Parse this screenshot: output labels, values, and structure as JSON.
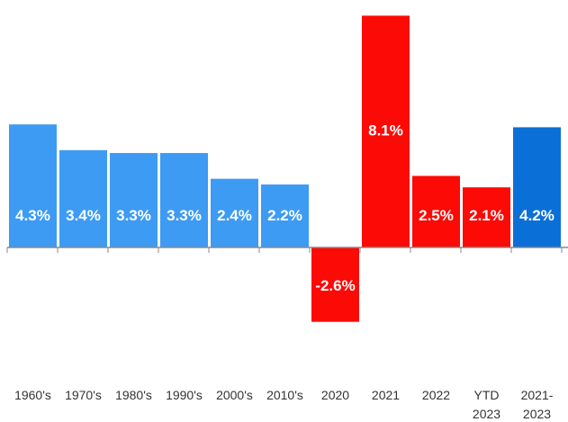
{
  "chart_data": {
    "type": "bar",
    "title": "",
    "xlabel": "",
    "ylabel": "",
    "ylim": [
      -3.1,
      8.8
    ],
    "grid": false,
    "legend": "none",
    "categories": [
      [
        "1960's"
      ],
      [
        "1970's"
      ],
      [
        "1980's"
      ],
      [
        "1990's"
      ],
      [
        "2000's"
      ],
      [
        "2010's"
      ],
      [
        "2020"
      ],
      [
        "2021"
      ],
      [
        "2022"
      ],
      [
        "YTD",
        "2023"
      ],
      [
        "2021-",
        "2023"
      ]
    ],
    "values": [
      4.3,
      3.4,
      3.3,
      3.3,
      2.4,
      2.2,
      -2.6,
      8.1,
      2.5,
      2.1,
      4.2
    ],
    "data_labels": [
      "4.3%",
      "3.4%",
      "3.3%",
      "3.3%",
      "2.4%",
      "2.2%",
      "-2.6%",
      "8.1%",
      "2.5%",
      "2.1%",
      "4.2%"
    ],
    "colors": [
      "#3d9bf4",
      "#3d9bf4",
      "#3d9bf4",
      "#3d9bf4",
      "#3d9bf4",
      "#3d9bf4",
      "#fb0a06",
      "#fb0a06",
      "#fb0a06",
      "#fb0a06",
      "#0b6fd8"
    ],
    "axis_color": "#8a8a8a"
  }
}
